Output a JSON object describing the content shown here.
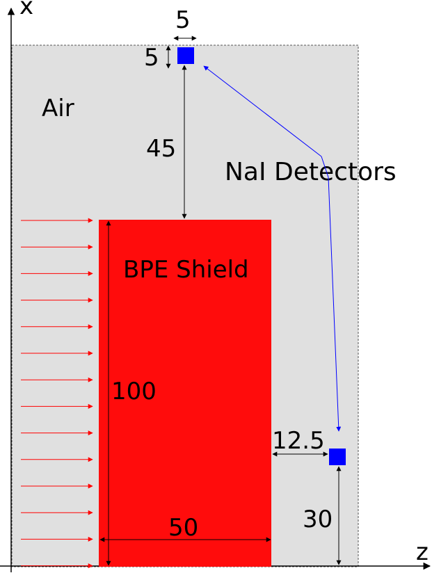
{
  "axes": {
    "x_label": "x",
    "z_label": "z"
  },
  "regions": {
    "air_label": "Air",
    "shield_label": "BPE Shield"
  },
  "detectors": {
    "label": "NaI Detectors"
  },
  "dimensions": {
    "detector_width": "5",
    "detector_height": "5",
    "gap_top": "45",
    "shield_height": "100",
    "shield_width": "50",
    "detector_offset_z": "12.5",
    "detector_offset_bottom": "30"
  },
  "colors": {
    "air": "#e0e0e0",
    "shield": "#ff0c0c",
    "detector": "#0000ff",
    "beam_arrows": "#ff0000",
    "pointer": "#0000ff"
  },
  "beam": {
    "arrow_count": 14
  }
}
